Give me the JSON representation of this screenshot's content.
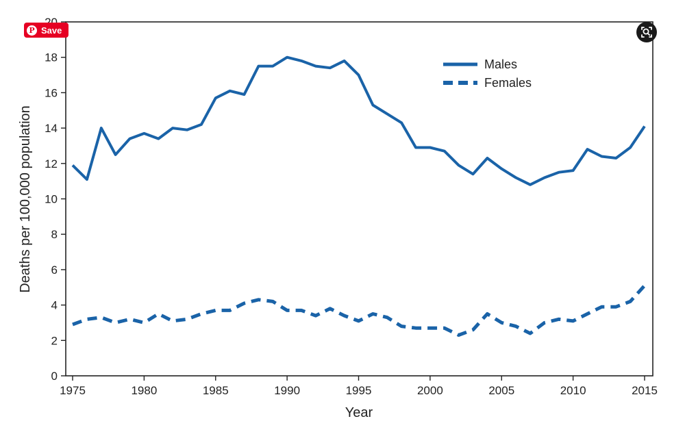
{
  "chart_data": {
    "type": "line",
    "xlabel": "Year",
    "ylabel": "Deaths per 100,000 population",
    "xlim": [
      1975,
      2015
    ],
    "ylim": [
      0,
      20
    ],
    "x_ticks": [
      1975,
      1980,
      1985,
      1990,
      1995,
      2000,
      2005,
      2010,
      2015
    ],
    "y_ticks": [
      0,
      2,
      4,
      6,
      8,
      10,
      12,
      14,
      16,
      18,
      20
    ],
    "grid": false,
    "legend_position": "top-right",
    "line_color": "#1a63a8",
    "x": [
      1975,
      1976,
      1977,
      1978,
      1979,
      1980,
      1981,
      1982,
      1983,
      1984,
      1985,
      1986,
      1987,
      1988,
      1989,
      1990,
      1991,
      1992,
      1993,
      1994,
      1995,
      1996,
      1997,
      1998,
      1999,
      2000,
      2001,
      2002,
      2003,
      2004,
      2005,
      2006,
      2007,
      2008,
      2009,
      2010,
      2011,
      2012,
      2013,
      2014,
      2015
    ],
    "series": [
      {
        "name": "Males",
        "style": "solid",
        "values": [
          11.9,
          11.1,
          14.0,
          12.5,
          13.4,
          13.7,
          13.4,
          14.0,
          13.9,
          14.2,
          15.7,
          16.1,
          15.9,
          17.5,
          17.5,
          18.0,
          17.8,
          17.5,
          17.4,
          17.8,
          17.0,
          15.3,
          14.8,
          14.3,
          12.9,
          12.9,
          12.7,
          11.9,
          11.4,
          12.3,
          11.7,
          11.2,
          10.8,
          11.2,
          11.5,
          11.6,
          12.8,
          12.4,
          12.3,
          12.9,
          14.1
        ]
      },
      {
        "name": "Females",
        "style": "dashed",
        "values": [
          2.9,
          3.2,
          3.3,
          3.0,
          3.2,
          3.0,
          3.5,
          3.1,
          3.2,
          3.5,
          3.7,
          3.7,
          4.1,
          4.3,
          4.2,
          3.7,
          3.7,
          3.4,
          3.8,
          3.4,
          3.1,
          3.5,
          3.3,
          2.8,
          2.7,
          2.7,
          2.7,
          2.3,
          2.6,
          3.5,
          3.0,
          2.8,
          2.4,
          3.0,
          3.2,
          3.1,
          3.5,
          3.9,
          3.9,
          4.2,
          5.1
        ]
      }
    ]
  },
  "overlay": {
    "save_label": "Save",
    "pin_glyph": "P",
    "pin_icon": "pinterest-icon",
    "zoom_icon": "visual-search-icon"
  }
}
